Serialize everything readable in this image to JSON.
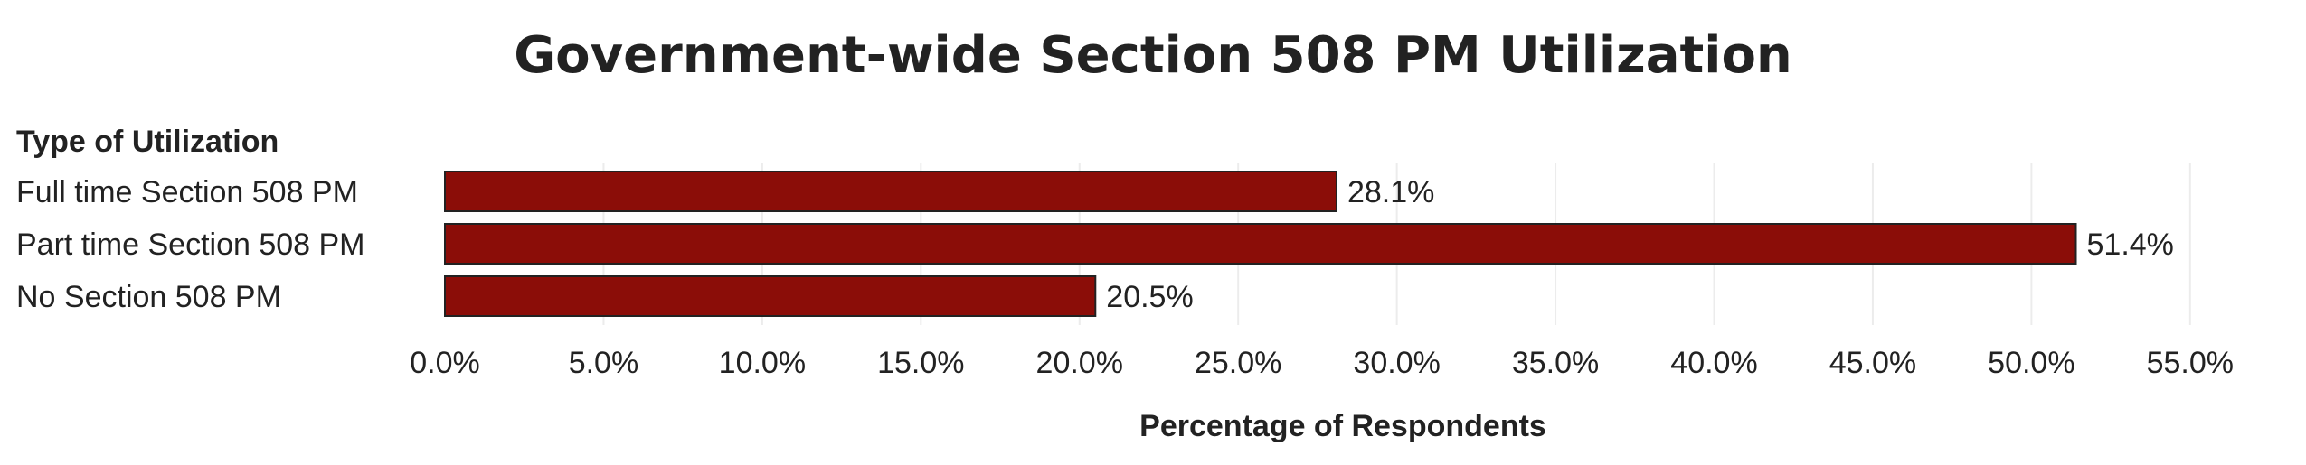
{
  "chart_data": {
    "type": "bar",
    "orientation": "horizontal",
    "title": "Government-wide Section 508 PM Utilization",
    "category_header": "Type of Utilization",
    "categories": [
      "Full time Section 508 PM",
      "Part time Section 508 PM",
      "No Section 508 PM"
    ],
    "values": [
      28.1,
      51.4,
      20.5
    ],
    "value_labels": [
      "28.1%",
      "51.4%",
      "20.5%"
    ],
    "xlabel": "Percentage of Respondents",
    "ylabel": "",
    "xlim": [
      0,
      57
    ],
    "xticks": [
      0,
      5,
      10,
      15,
      20,
      25,
      30,
      35,
      40,
      45,
      50,
      55
    ],
    "xtick_labels": [
      "0.0%",
      "5.0%",
      "10.0%",
      "15.0%",
      "20.0%",
      "25.0%",
      "30.0%",
      "35.0%",
      "40.0%",
      "45.0%",
      "50.0%",
      "55.0%"
    ],
    "grid": true,
    "legend": "none",
    "bar_color": "#8b0d08"
  }
}
